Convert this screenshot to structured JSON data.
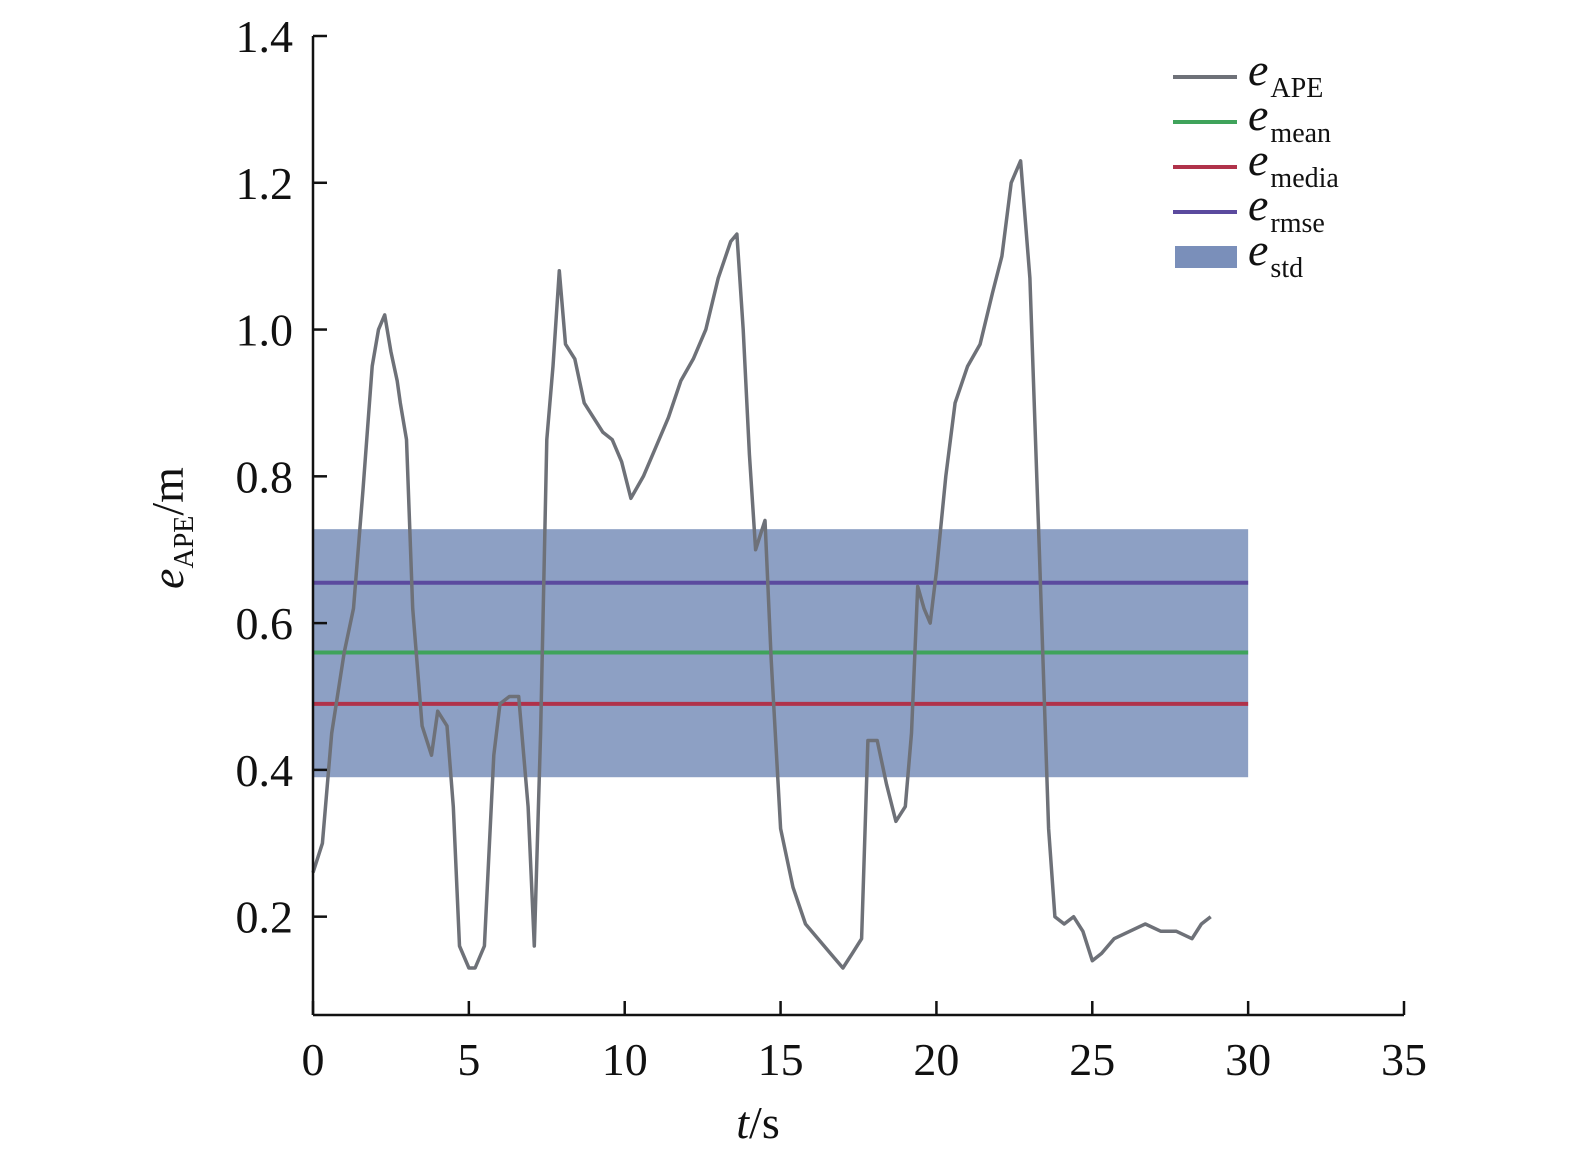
{
  "chart_data": {
    "type": "line",
    "title": "",
    "xlabel": {
      "main": "t",
      "suffix": "/s"
    },
    "ylabel": {
      "main": "e",
      "sub": "APE",
      "suffix": "/m"
    },
    "xlim": [
      0,
      35
    ],
    "ylim": [
      0.066,
      1.4
    ],
    "x_ticks": [
      0,
      5,
      10,
      15,
      20,
      25,
      30,
      35
    ],
    "x_tick_labels": [
      "0",
      "5",
      "10",
      "15",
      "20",
      "25",
      "30",
      "35"
    ],
    "y_ticks": [
      0.2,
      0.4,
      0.6,
      0.8,
      1.0,
      1.2,
      1.4
    ],
    "y_tick_labels": [
      "0.2",
      "0.4",
      "0.6",
      "0.8",
      "1.0",
      "1.2",
      "1.4"
    ],
    "grid": false,
    "legend_position": "top-right",
    "legend": [
      {
        "main": "e",
        "sub": "APE",
        "kind": "line",
        "color": "#6e7178"
      },
      {
        "main": "e",
        "sub": "mean",
        "kind": "line",
        "color": "#3fa35b"
      },
      {
        "main": "e",
        "sub": "media",
        "kind": "line",
        "color": "#b0324a"
      },
      {
        "main": "e",
        "sub": "rmse",
        "kind": "line",
        "color": "#5b4a9e"
      },
      {
        "main": "e",
        "sub": "std",
        "kind": "band",
        "color": "#4d6aa3"
      }
    ],
    "series": [
      {
        "name": "eAPE",
        "color": "#6e7178",
        "x": [
          0,
          0.3,
          0.6,
          1.0,
          1.3,
          1.6,
          1.9,
          2.1,
          2.3,
          2.5,
          2.7,
          2.8,
          3.0,
          3.2,
          3.5,
          3.8,
          4.0,
          4.3,
          4.5,
          4.7,
          5.0,
          5.2,
          5.5,
          5.8,
          6.0,
          6.3,
          6.6,
          6.9,
          7.1,
          7.3,
          7.5,
          7.7,
          7.9,
          8.1,
          8.4,
          8.7,
          9.0,
          9.3,
          9.6,
          9.9,
          10.2,
          10.6,
          11.0,
          11.4,
          11.8,
          12.2,
          12.6,
          13.0,
          13.4,
          13.6,
          13.8,
          14.0,
          14.2,
          14.5,
          14.7,
          15.0,
          15.4,
          15.8,
          16.2,
          16.6,
          17.0,
          17.3,
          17.6,
          17.8,
          18.1,
          18.4,
          18.7,
          19.0,
          19.2,
          19.4,
          19.6,
          19.8,
          20.0,
          20.3,
          20.6,
          21.0,
          21.4,
          21.8,
          22.1,
          22.4,
          22.7,
          23.0,
          23.3,
          23.6,
          23.8,
          24.1,
          24.4,
          24.7,
          25.0,
          25.3,
          25.7,
          26.2,
          26.7,
          27.2,
          27.7,
          28.2,
          28.5,
          28.8
        ],
        "values": [
          0.26,
          0.3,
          0.45,
          0.56,
          0.62,
          0.78,
          0.95,
          1.0,
          1.02,
          0.97,
          0.93,
          0.9,
          0.85,
          0.62,
          0.46,
          0.42,
          0.48,
          0.46,
          0.35,
          0.16,
          0.13,
          0.13,
          0.16,
          0.42,
          0.49,
          0.5,
          0.5,
          0.35,
          0.16,
          0.45,
          0.85,
          0.95,
          1.08,
          0.98,
          0.96,
          0.9,
          0.88,
          0.86,
          0.85,
          0.82,
          0.77,
          0.8,
          0.84,
          0.88,
          0.93,
          0.96,
          1.0,
          1.07,
          1.12,
          1.13,
          1.0,
          0.83,
          0.7,
          0.74,
          0.55,
          0.32,
          0.24,
          0.19,
          0.17,
          0.15,
          0.13,
          0.15,
          0.17,
          0.44,
          0.44,
          0.38,
          0.33,
          0.35,
          0.45,
          0.65,
          0.62,
          0.6,
          0.67,
          0.8,
          0.9,
          0.95,
          0.98,
          1.05,
          1.1,
          1.2,
          1.23,
          1.07,
          0.7,
          0.32,
          0.2,
          0.19,
          0.2,
          0.18,
          0.14,
          0.15,
          0.17,
          0.18,
          0.19,
          0.18,
          0.18,
          0.17,
          0.19,
          0.2
        ]
      }
    ],
    "reference_lines": [
      {
        "name": "emean",
        "value": 0.56,
        "x_range": [
          0,
          30
        ],
        "color": "#3fa35b"
      },
      {
        "name": "emedia",
        "value": 0.49,
        "x_range": [
          0,
          30
        ],
        "color": "#b0324a"
      },
      {
        "name": "ermse",
        "value": 0.655,
        "x_range": [
          0,
          30
        ],
        "color": "#5b4a9e"
      }
    ],
    "bands": [
      {
        "name": "estd",
        "low": 0.39,
        "high": 0.728,
        "x_range": [
          0,
          30
        ],
        "color": "#4d6aa3"
      }
    ]
  }
}
